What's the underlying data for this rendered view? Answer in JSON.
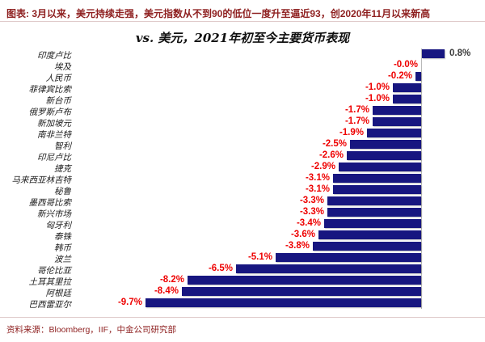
{
  "header": {
    "title": "图表: 3月以来，美元持续走强，美元指数从不到90的低位一度升至逼近93，创2020年11月以来新高"
  },
  "footer": {
    "source": "资料来源：Bloomberg，IIF，中金公司研究部"
  },
  "colors": {
    "bar": "#171680",
    "negative_label": "#ee0000",
    "positive_label": "#3a3a3a",
    "title_red": "#8e1f1f",
    "divider": "#dfcaca"
  },
  "chart_data": {
    "type": "bar",
    "orientation": "horizontal",
    "title": "vs. 美元，2021年初至今主要货币表现",
    "xlabel": "",
    "ylabel": "",
    "xlim": [
      -10.5,
      2.3
    ],
    "grid": false,
    "legend": false,
    "value_label_format": "percent_one_decimal",
    "categories": [
      "印度卢比",
      "埃及",
      "人民币",
      "菲律宾比索",
      "新台币",
      "俄罗斯卢布",
      "新加坡元",
      "南非兰特",
      "智利",
      "印尼卢比",
      "捷克",
      "马来西亚林吉特",
      "秘鲁",
      "墨西哥比索",
      "新兴市场",
      "匈牙利",
      "泰铢",
      "韩币",
      "波兰",
      "哥伦比亚",
      "土耳其里拉",
      "阿根廷",
      "巴西雷亚尔"
    ],
    "values": [
      0.8,
      -0.0,
      -0.2,
      -1.0,
      -1.0,
      -1.7,
      -1.7,
      -1.9,
      -2.5,
      -2.6,
      -2.9,
      -3.1,
      -3.1,
      -3.3,
      -3.3,
      -3.4,
      -3.6,
      -3.8,
      -5.1,
      -6.5,
      -8.2,
      -8.4,
      -9.7
    ],
    "labels": [
      "0.8%",
      "-0.0%",
      "-0.2%",
      "-1.0%",
      "-1.0%",
      "-1.7%",
      "-1.7%",
      "-1.9%",
      "-2.5%",
      "-2.6%",
      "-2.9%",
      "-3.1%",
      "-3.1%",
      "-3.3%",
      "-3.3%",
      "-3.4%",
      "-3.6%",
      "-3.8%",
      "-5.1%",
      "-6.5%",
      "-8.2%",
      "-8.4%",
      "-9.7%"
    ]
  }
}
